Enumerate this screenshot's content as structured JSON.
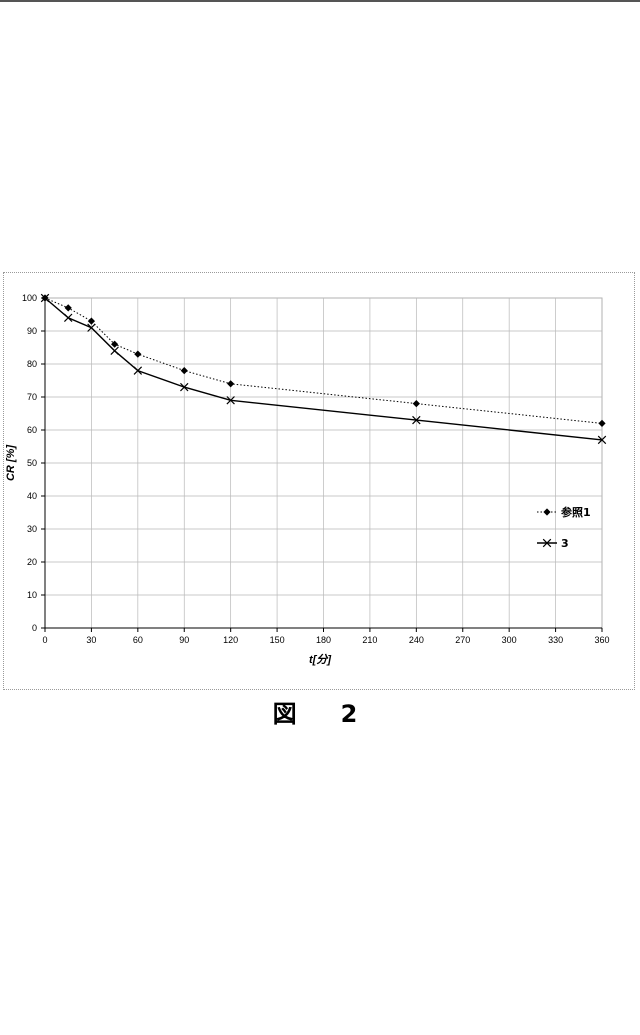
{
  "figure_caption": "図　2",
  "chart_data": {
    "type": "line",
    "xlabel": "t[分]",
    "ylabel": "CR [%]",
    "xlim": [
      0,
      360
    ],
    "ylim": [
      0,
      100
    ],
    "x_ticks": [
      0,
      30,
      60,
      90,
      120,
      150,
      180,
      210,
      240,
      270,
      300,
      330,
      360
    ],
    "y_ticks": [
      0,
      10,
      20,
      30,
      40,
      50,
      60,
      70,
      80,
      90,
      100
    ],
    "grid": true,
    "legend_position": "right",
    "series": [
      {
        "name": "参照1",
        "marker": "diamond",
        "line": "dotted",
        "color": "#000000",
        "points": [
          [
            0,
            100
          ],
          [
            15,
            97
          ],
          [
            30,
            93
          ],
          [
            45,
            86
          ],
          [
            60,
            83
          ],
          [
            90,
            78
          ],
          [
            120,
            74
          ],
          [
            240,
            68
          ],
          [
            360,
            62
          ]
        ]
      },
      {
        "name": "3",
        "marker": "x",
        "line": "solid",
        "color": "#000000",
        "points": [
          [
            0,
            100
          ],
          [
            15,
            94
          ],
          [
            30,
            91
          ],
          [
            45,
            84
          ],
          [
            60,
            78
          ],
          [
            90,
            73
          ],
          [
            120,
            69
          ],
          [
            240,
            63
          ],
          [
            360,
            57
          ]
        ]
      }
    ]
  }
}
